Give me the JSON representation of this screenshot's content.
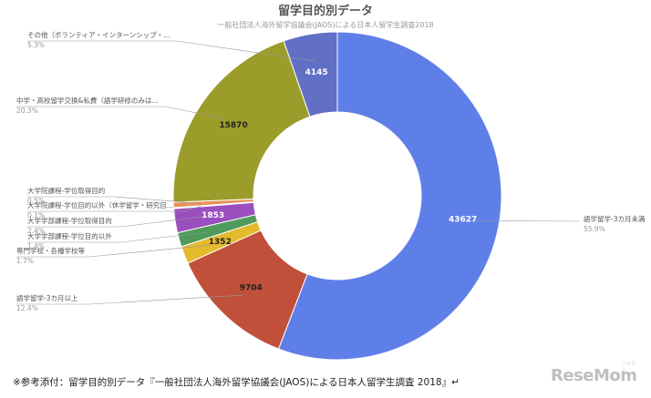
{
  "chart_data": {
    "type": "pie",
    "title": "留学目的別データ",
    "subtitle": "一般社団法人海外留学協議会(JAOS)による日本人留学生調査2018",
    "slices": [
      {
        "label": "語学留学-3カ月未満",
        "value": 43627,
        "percent": "55.9%",
        "value_label": "43627",
        "color": "#5f7fe8"
      },
      {
        "label": "語学留学-3カ月以上",
        "value": 9704,
        "percent": "12.4%",
        "value_label": "9704",
        "color": "#c0503a"
      },
      {
        "label": "専門学校・各種学校等",
        "value": 1352,
        "percent": "1.7%",
        "value_label": "1352",
        "color": "#e3bb2c"
      },
      {
        "label": "大学学部課程-学位目的以外",
        "value": 1090,
        "percent": "1.4%",
        "value_label": "",
        "color": "#4f9a5c"
      },
      {
        "label": "大学学部課程-学位取得目的",
        "value": 1853,
        "percent": "2.4%",
        "value_label": "1853",
        "color": "#9b4fbf"
      },
      {
        "label": "大学院課程-学位目的以外（休学留学・研究目…",
        "value": 80,
        "percent": "0.1%",
        "value_label": "",
        "color": "#3aa8c8"
      },
      {
        "label": "大学院課程-学位取得目的",
        "value": 420,
        "percent": "0.5%",
        "value_label": "",
        "color": "#e8925a"
      },
      {
        "label": "中学・高校留学交換&私費（語学研修のみは…",
        "value": 15870,
        "percent": "20.3%",
        "value_label": "15870",
        "color": "#9c9c2a"
      },
      {
        "label": "その他（ボランティア・インターンシップ・…",
        "value": 4145,
        "percent": "5.3%",
        "value_label": "4145",
        "color": "#6170c4"
      }
    ]
  },
  "caption": "※参考添付：留学目的別データ『一般社団法人海外留学協議会(JAOS)による日本人留学生調査 2018』↵",
  "logo": {
    "text": "ReseMom",
    "sup": "リセマム"
  }
}
